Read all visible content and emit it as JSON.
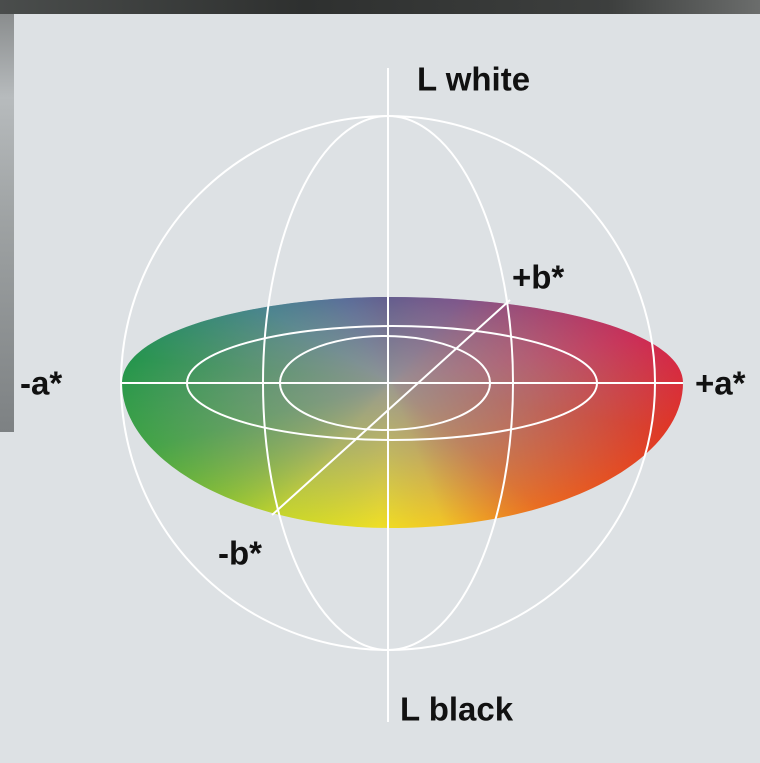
{
  "axes": {
    "l_top": "L white",
    "l_bottom": "L black",
    "a_pos": "+a*",
    "a_neg": "-a*",
    "b_pos": "+b*",
    "b_neg": "-b*"
  }
}
